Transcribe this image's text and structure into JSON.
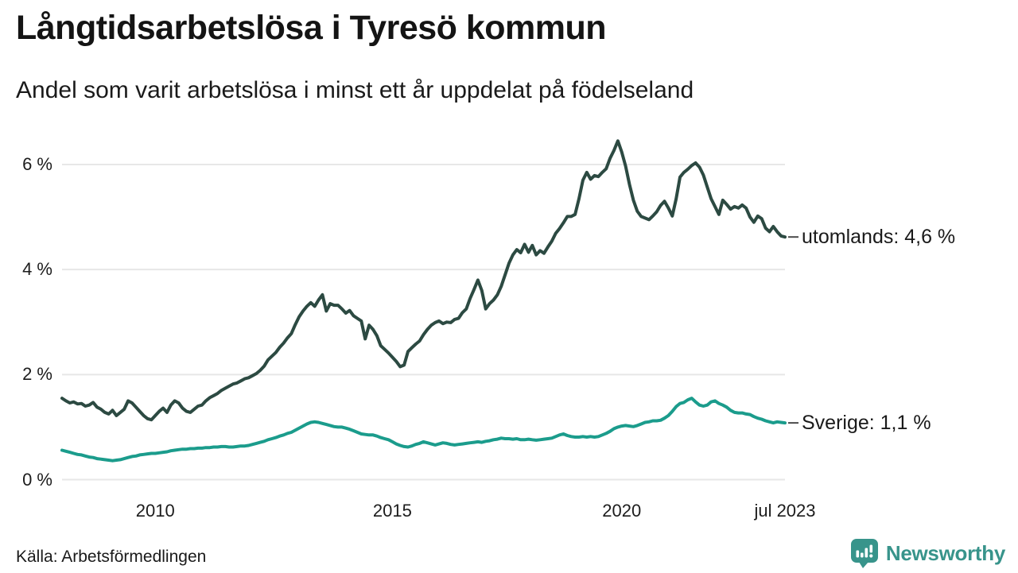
{
  "header": {
    "title": "Långtidsarbetslösa i Tyresö kommun",
    "subtitle": "Andel som varit arbetslösa i minst ett år uppdelat på födelseland"
  },
  "footer": {
    "source": "Källa: Arbetsförmedlingen",
    "brand_name": "Newsworthy"
  },
  "colors": {
    "background": "#ffffff",
    "grid": "#e7e7e7",
    "text": "#1a1a1a",
    "tick_dash": "#4a4a4a",
    "series_utomlands": "#2c4a42",
    "series_sverige": "#1b9c8c",
    "brand": "#38948b"
  },
  "chart_data": {
    "type": "line",
    "title": "Långtidsarbetslösa i Tyresö kommun",
    "subtitle": "Andel som varit arbetslösa i minst ett år uppdelat på födelseland",
    "x_start": "2008-01",
    "x_end": "2023-07",
    "frequency": "monthly",
    "grid": true,
    "ylim": [
      0,
      6.6
    ],
    "yticks": [
      {
        "value": 0,
        "label": "0 %"
      },
      {
        "value": 2,
        "label": "2 %"
      },
      {
        "value": 4,
        "label": "4 %"
      },
      {
        "value": 6,
        "label": "6 %"
      }
    ],
    "xticks": [
      {
        "label": "2010",
        "month_index": 24
      },
      {
        "label": "2015",
        "month_index": 85
      },
      {
        "label": "2020",
        "month_index": 144
      },
      {
        "label": "jul 2023",
        "month_index": 186
      }
    ],
    "series": [
      {
        "name": "utomlands",
        "color": "#2c4a42",
        "end_label": "utomlands: 4,6 %",
        "end_value": 4.6,
        "values": [
          1.55,
          1.5,
          1.46,
          1.48,
          1.44,
          1.45,
          1.4,
          1.42,
          1.47,
          1.38,
          1.34,
          1.28,
          1.25,
          1.32,
          1.22,
          1.28,
          1.34,
          1.5,
          1.46,
          1.38,
          1.3,
          1.22,
          1.16,
          1.14,
          1.22,
          1.3,
          1.36,
          1.28,
          1.42,
          1.5,
          1.46,
          1.36,
          1.3,
          1.28,
          1.34,
          1.4,
          1.42,
          1.5,
          1.56,
          1.6,
          1.64,
          1.7,
          1.74,
          1.78,
          1.82,
          1.84,
          1.88,
          1.92,
          1.94,
          1.98,
          2.02,
          2.08,
          2.16,
          2.28,
          2.35,
          2.42,
          2.52,
          2.6,
          2.7,
          2.78,
          2.95,
          3.1,
          3.21,
          3.3,
          3.37,
          3.3,
          3.42,
          3.52,
          3.21,
          3.35,
          3.32,
          3.32,
          3.25,
          3.17,
          3.22,
          3.12,
          3.07,
          3.02,
          2.68,
          2.94,
          2.86,
          2.74,
          2.55,
          2.48,
          2.41,
          2.33,
          2.25,
          2.15,
          2.18,
          2.44,
          2.51,
          2.58,
          2.64,
          2.76,
          2.86,
          2.94,
          2.99,
          3.02,
          2.97,
          3.0,
          2.99,
          3.05,
          3.07,
          3.18,
          3.25,
          3.45,
          3.62,
          3.8,
          3.6,
          3.25,
          3.35,
          3.42,
          3.52,
          3.68,
          3.9,
          4.12,
          4.28,
          4.38,
          4.32,
          4.48,
          4.33,
          4.46,
          4.28,
          4.36,
          4.31,
          4.43,
          4.54,
          4.69,
          4.78,
          4.89,
          5.01,
          5.01,
          5.05,
          5.35,
          5.7,
          5.85,
          5.72,
          5.79,
          5.77,
          5.85,
          5.92,
          6.12,
          6.27,
          6.45,
          6.24,
          5.97,
          5.62,
          5.32,
          5.11,
          5.01,
          4.98,
          4.95,
          5.02,
          5.1,
          5.22,
          5.3,
          5.17,
          5.02,
          5.35,
          5.76,
          5.85,
          5.91,
          5.98,
          6.03,
          5.95,
          5.8,
          5.57,
          5.35,
          5.2,
          5.05,
          5.32,
          5.24,
          5.15,
          5.2,
          5.17,
          5.23,
          5.17,
          5.0,
          4.9,
          5.02,
          4.97,
          4.79,
          4.72,
          4.82,
          4.72,
          4.64,
          4.62
        ]
      },
      {
        "name": "Sverige",
        "color": "#1b9c8c",
        "end_label": "Sverige: 1,1 %",
        "end_value": 1.1,
        "values": [
          0.56,
          0.54,
          0.52,
          0.5,
          0.48,
          0.47,
          0.45,
          0.43,
          0.42,
          0.4,
          0.39,
          0.38,
          0.37,
          0.36,
          0.37,
          0.38,
          0.4,
          0.42,
          0.44,
          0.45,
          0.47,
          0.48,
          0.49,
          0.5,
          0.5,
          0.51,
          0.52,
          0.53,
          0.55,
          0.56,
          0.57,
          0.58,
          0.58,
          0.59,
          0.59,
          0.6,
          0.6,
          0.61,
          0.61,
          0.62,
          0.62,
          0.63,
          0.63,
          0.62,
          0.62,
          0.63,
          0.64,
          0.64,
          0.65,
          0.67,
          0.69,
          0.71,
          0.73,
          0.76,
          0.78,
          0.8,
          0.83,
          0.85,
          0.88,
          0.9,
          0.94,
          0.98,
          1.02,
          1.06,
          1.09,
          1.1,
          1.09,
          1.07,
          1.05,
          1.03,
          1.01,
          1.0,
          1.0,
          0.98,
          0.96,
          0.93,
          0.9,
          0.87,
          0.86,
          0.85,
          0.85,
          0.83,
          0.8,
          0.78,
          0.76,
          0.72,
          0.68,
          0.65,
          0.63,
          0.62,
          0.64,
          0.67,
          0.69,
          0.72,
          0.7,
          0.68,
          0.66,
          0.68,
          0.7,
          0.69,
          0.67,
          0.66,
          0.67,
          0.68,
          0.69,
          0.7,
          0.71,
          0.72,
          0.71,
          0.73,
          0.74,
          0.76,
          0.77,
          0.79,
          0.78,
          0.78,
          0.77,
          0.78,
          0.76,
          0.76,
          0.77,
          0.76,
          0.75,
          0.76,
          0.77,
          0.78,
          0.79,
          0.82,
          0.85,
          0.87,
          0.84,
          0.82,
          0.81,
          0.81,
          0.82,
          0.81,
          0.82,
          0.81,
          0.82,
          0.85,
          0.88,
          0.92,
          0.97,
          1.0,
          1.02,
          1.03,
          1.02,
          1.01,
          1.03,
          1.06,
          1.09,
          1.1,
          1.12,
          1.12,
          1.13,
          1.17,
          1.22,
          1.3,
          1.39,
          1.45,
          1.47,
          1.52,
          1.55,
          1.48,
          1.42,
          1.4,
          1.42,
          1.48,
          1.5,
          1.45,
          1.42,
          1.38,
          1.32,
          1.28,
          1.27,
          1.27,
          1.25,
          1.24,
          1.2,
          1.17,
          1.15,
          1.12,
          1.1,
          1.08,
          1.1,
          1.09,
          1.08
        ]
      }
    ]
  }
}
